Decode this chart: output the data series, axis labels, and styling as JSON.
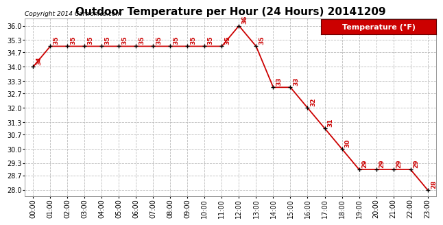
{
  "title": "Outdoor Temperature per Hour (24 Hours) 20141209",
  "copyright": "Copyright 2014 Cartronics.com",
  "legend_label": "Temperature (°F)",
  "hours": [
    "00:00",
    "01:00",
    "02:00",
    "03:00",
    "04:00",
    "05:00",
    "06:00",
    "07:00",
    "08:00",
    "09:00",
    "10:00",
    "11:00",
    "12:00",
    "13:00",
    "14:00",
    "15:00",
    "16:00",
    "17:00",
    "18:00",
    "19:00",
    "20:00",
    "21:00",
    "22:00",
    "23:00"
  ],
  "temperatures": [
    34,
    35,
    35,
    35,
    35,
    35,
    35,
    35,
    35,
    35,
    35,
    35,
    36,
    35,
    33,
    33,
    32,
    31,
    30,
    29,
    29,
    29,
    29,
    28
  ],
  "line_color": "#cc0000",
  "marker_color": "#000000",
  "label_color": "#cc0000",
  "bg_color": "#ffffff",
  "grid_color": "#bbbbbb",
  "legend_bg": "#cc0000",
  "legend_text_color": "#ffffff",
  "ylim_min": 27.7,
  "ylim_max": 36.35,
  "yticks": [
    28.0,
    28.7,
    29.3,
    30.0,
    30.7,
    31.3,
    32.0,
    32.7,
    33.3,
    34.0,
    34.7,
    35.3,
    36.0
  ],
  "title_fontsize": 11,
  "copyright_fontsize": 6.5,
  "label_fontsize": 6.5,
  "tick_fontsize": 7,
  "legend_fontsize": 8
}
